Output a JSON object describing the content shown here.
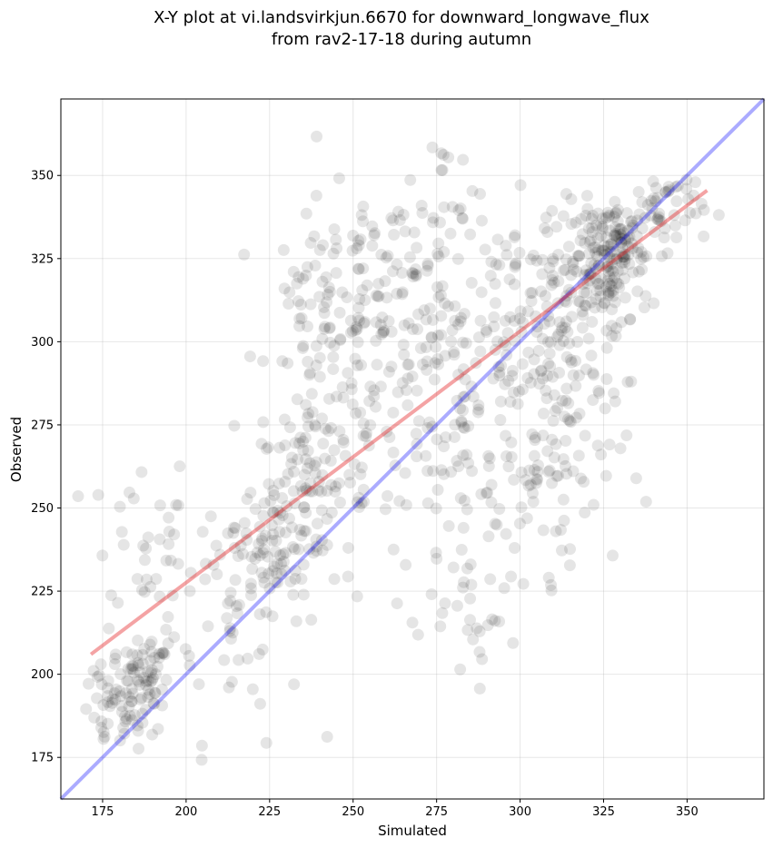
{
  "chart_data": {
    "type": "scatter",
    "title": [
      "X-Y plot at vi.landsvirkjun.6670 for downward_longwave_flux",
      "from rav2-17-18 during autumn"
    ],
    "xlabel": "Simulated",
    "ylabel": "Observed",
    "xlim": [
      162.5,
      373
    ],
    "ylim": [
      162.5,
      373
    ],
    "xticks": [
      175,
      200,
      225,
      250,
      275,
      300,
      325,
      350
    ],
    "yticks": [
      175,
      200,
      225,
      250,
      275,
      300,
      325,
      350
    ],
    "grid": true,
    "point_color": "#000000",
    "point_opacity": 0.1,
    "fit_line": {
      "color": "#e41a1c",
      "x": [
        171.5,
        356
      ],
      "y": [
        206,
        345.5
      ]
    },
    "identity_line": {
      "color": "#0000ff",
      "x": [
        162.5,
        373
      ],
      "y": [
        162.5,
        373
      ]
    },
    "clusters": [
      {
        "cx": 187,
        "cy": 196,
        "sx": 4,
        "sy": 7,
        "n": 70
      },
      {
        "cx": 177,
        "cy": 188,
        "sx": 4,
        "sy": 6,
        "n": 30
      },
      {
        "cx": 186,
        "cy": 230,
        "sx": 8,
        "sy": 22,
        "n": 50
      },
      {
        "cx": 215,
        "cy": 225,
        "sx": 10,
        "sy": 22,
        "n": 70
      },
      {
        "cx": 227,
        "cy": 240,
        "sx": 5,
        "sy": 10,
        "n": 60
      },
      {
        "cx": 235,
        "cy": 255,
        "sx": 6,
        "sy": 10,
        "n": 50
      },
      {
        "cx": 243,
        "cy": 270,
        "sx": 9,
        "sy": 28,
        "n": 80
      },
      {
        "cx": 243,
        "cy": 310,
        "sx": 9,
        "sy": 16,
        "n": 60
      },
      {
        "cx": 260,
        "cy": 320,
        "sx": 12,
        "sy": 12,
        "n": 60
      },
      {
        "cx": 265,
        "cy": 280,
        "sx": 14,
        "sy": 25,
        "n": 80
      },
      {
        "cx": 278,
        "cy": 300,
        "sx": 10,
        "sy": 30,
        "n": 70
      },
      {
        "cx": 283,
        "cy": 245,
        "sx": 8,
        "sy": 20,
        "n": 40
      },
      {
        "cx": 277,
        "cy": 348,
        "sx": 6,
        "sy": 8,
        "n": 15
      },
      {
        "cx": 295,
        "cy": 305,
        "sx": 8,
        "sy": 18,
        "n": 60
      },
      {
        "cx": 302,
        "cy": 265,
        "sx": 9,
        "sy": 25,
        "n": 70
      },
      {
        "cx": 315,
        "cy": 305,
        "sx": 8,
        "sy": 18,
        "n": 80
      },
      {
        "cx": 325,
        "cy": 322,
        "sx": 7,
        "sy": 10,
        "n": 140
      },
      {
        "cx": 330,
        "cy": 330,
        "sx": 3,
        "sy": 4,
        "n": 50
      },
      {
        "cx": 343,
        "cy": 340,
        "sx": 6,
        "sy": 6,
        "n": 50
      },
      {
        "cx": 316,
        "cy": 265,
        "sx": 8,
        "sy": 18,
        "n": 40
      },
      {
        "cx": 288,
        "cy": 210,
        "sx": 5,
        "sy": 6,
        "n": 12
      }
    ]
  }
}
